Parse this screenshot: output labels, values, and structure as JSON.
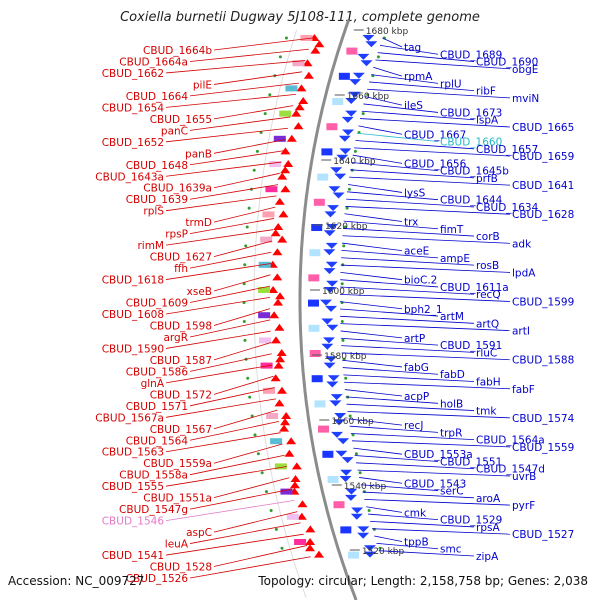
{
  "title": "Coxiella burnetii Dugway 5J108-111, complete genome",
  "footer": {
    "accession": "Accession: NC_009727",
    "stats": "Topology: circular; Length: 2,158,758 bp; Genes: 2,038"
  },
  "colors": {
    "left_label": "#d40000",
    "right_label": "#0000cc",
    "highlight_left": "#e07ac8",
    "highlight_right": "#22b8cc",
    "arc": "#8c8c8c",
    "forward_arrow": "#ff0000",
    "reverse_arrow": "#1f3fff",
    "tick_dot": "#2e9d2e"
  },
  "ruler": [
    {
      "label": "1680 kbp"
    },
    {
      "label": "1660 kbp"
    },
    {
      "label": "1640 kbp"
    },
    {
      "label": "1620 kbp"
    },
    {
      "label": "1600 kbp"
    },
    {
      "label": "1580 kbp"
    },
    {
      "label": "1560 kbp"
    },
    {
      "label": "1540 kbp"
    },
    {
      "label": "1520 kbp"
    }
  ],
  "left_labels": [
    {
      "text": "CBUD_1664b"
    },
    {
      "text": "CBUD_1664a"
    },
    {
      "text": "CBUD_1662"
    },
    {
      "text": "pilE"
    },
    {
      "text": "CBUD_1664"
    },
    {
      "text": "CBUD_1654"
    },
    {
      "text": "CBUD_1655"
    },
    {
      "text": "panC"
    },
    {
      "text": "CBUD_1652"
    },
    {
      "text": "panB"
    },
    {
      "text": "CBUD_1648"
    },
    {
      "text": "CBUD_1643a"
    },
    {
      "text": "CBUD_1639a"
    },
    {
      "text": "CBUD_1639"
    },
    {
      "text": "rplS"
    },
    {
      "text": "trmD"
    },
    {
      "text": "rpsP"
    },
    {
      "text": "rimM"
    },
    {
      "text": "CBUD_1627"
    },
    {
      "text": "ffh"
    },
    {
      "text": "CBUD_1618"
    },
    {
      "text": "xseB"
    },
    {
      "text": "CBUD_1609"
    },
    {
      "text": "CBUD_1608"
    },
    {
      "text": "CBUD_1598"
    },
    {
      "text": "argR"
    },
    {
      "text": "CBUD_1590"
    },
    {
      "text": "CBUD_1587"
    },
    {
      "text": "CBUD_1586"
    },
    {
      "text": "glnA"
    },
    {
      "text": "CBUD_1572"
    },
    {
      "text": "CBUD_1571"
    },
    {
      "text": "CBUD_1567a"
    },
    {
      "text": "CBUD_1567"
    },
    {
      "text": "CBUD_1564"
    },
    {
      "text": "CBUD_1563"
    },
    {
      "text": "CBUD_1559a"
    },
    {
      "text": "CBUD_1558a"
    },
    {
      "text": "CBUD_1555"
    },
    {
      "text": "CBUD_1551a"
    },
    {
      "text": "CBUD_1547g"
    },
    {
      "text": "CBUD_1546",
      "highlight": true
    },
    {
      "text": "aspC"
    },
    {
      "text": "leuA"
    },
    {
      "text": "CBUD_1541"
    },
    {
      "text": "CBUD_1528"
    },
    {
      "text": "CBUD_1526"
    }
  ],
  "right_labels": [
    {
      "text": "tag"
    },
    {
      "text": "CBUD_1689"
    },
    {
      "text": "CBUD_1690"
    },
    {
      "text": "obgE"
    },
    {
      "text": "rpmA"
    },
    {
      "text": "rplU"
    },
    {
      "text": "ribF"
    },
    {
      "text": "mviN"
    },
    {
      "text": "ileS"
    },
    {
      "text": "CBUD_1673"
    },
    {
      "text": "lspA"
    },
    {
      "text": "CBUD_1665"
    },
    {
      "text": "CBUD_1667"
    },
    {
      "text": "CBUD_1660",
      "highlight": true
    },
    {
      "text": "CBUD_1657"
    },
    {
      "text": "CBUD_1659"
    },
    {
      "text": "CBUD_1656"
    },
    {
      "text": "CBUD_1645b"
    },
    {
      "text": "prfB"
    },
    {
      "text": "CBUD_1641"
    },
    {
      "text": "lysS"
    },
    {
      "text": "CBUD_1644"
    },
    {
      "text": "CBUD_1634"
    },
    {
      "text": "CBUD_1628"
    },
    {
      "text": "trx"
    },
    {
      "text": "fimT"
    },
    {
      "text": "corB"
    },
    {
      "text": "adk"
    },
    {
      "text": "aceE"
    },
    {
      "text": "ampE"
    },
    {
      "text": "rosB"
    },
    {
      "text": "lpdA"
    },
    {
      "text": "bioC.2"
    },
    {
      "text": "CBUD_1611a"
    },
    {
      "text": "recQ"
    },
    {
      "text": "CBUD_1599"
    },
    {
      "text": "bph2_1"
    },
    {
      "text": "artM"
    },
    {
      "text": "artQ"
    },
    {
      "text": "artI"
    },
    {
      "text": "artP"
    },
    {
      "text": "CBUD_1591"
    },
    {
      "text": "rluC"
    },
    {
      "text": "CBUD_1588"
    },
    {
      "text": "fabG"
    },
    {
      "text": "fabD"
    },
    {
      "text": "fabH"
    },
    {
      "text": "fabF"
    },
    {
      "text": "acpP"
    },
    {
      "text": "holB"
    },
    {
      "text": "tmk"
    },
    {
      "text": "CBUD_1574"
    },
    {
      "text": "recJ"
    },
    {
      "text": "trpR"
    },
    {
      "text": "CBUD_1564a"
    },
    {
      "text": "CBUD_1559"
    },
    {
      "text": "CBUD_1553a"
    },
    {
      "text": "CBUD_1551"
    },
    {
      "text": "CBUD_1547d"
    },
    {
      "text": "uvrB"
    },
    {
      "text": "CBUD_1543"
    },
    {
      "text": "serC"
    },
    {
      "text": "aroA"
    },
    {
      "text": "pyrF"
    },
    {
      "text": "cmk"
    },
    {
      "text": "CBUD_1529"
    },
    {
      "text": "rpsA"
    },
    {
      "text": "CBUD_1527"
    },
    {
      "text": "tppB"
    },
    {
      "text": "smc"
    },
    {
      "text": "zipA"
    }
  ],
  "tracks": {
    "forward_feature_colors": [
      "#ff9fb0",
      "#58bcd4",
      "#7a2bd6",
      "#ff2d9b",
      "#f4a8c6",
      "#9adf3e",
      "#f2c0f0"
    ],
    "reverse_feature_colors": [
      "#1a35ff",
      "#66e0ff",
      "#ff5ea8",
      "#5fbf3a",
      "#b3e4ff",
      "#ffe5f0"
    ]
  }
}
